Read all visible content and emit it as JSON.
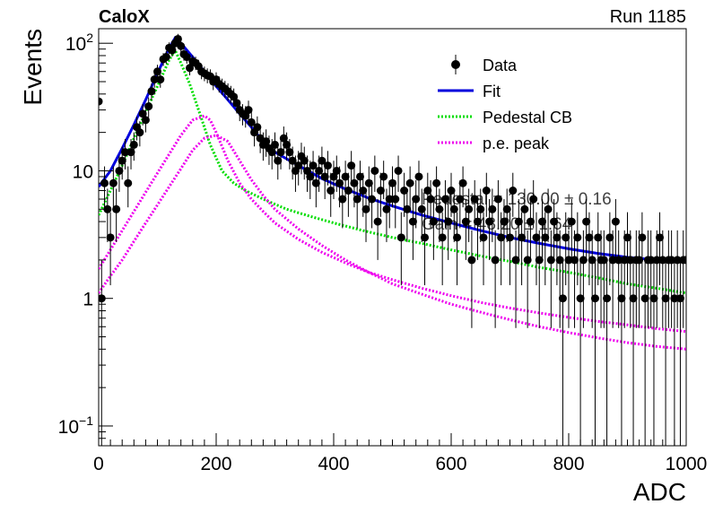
{
  "chart_data": {
    "type": "scatter",
    "experiment_label": "CaloX",
    "run_label": "Run 1185",
    "xlabel": "ADC",
    "ylabel": "Events",
    "xlim": [
      0,
      1000
    ],
    "ylim": [
      0.07,
      130
    ],
    "yscale": "log",
    "x_ticks": [
      0,
      200,
      400,
      600,
      800,
      1000
    ],
    "y_ticks": [
      {
        "value": 0.1,
        "base": "10",
        "exp": "−1"
      },
      {
        "value": 1,
        "text": "1"
      },
      {
        "value": 10,
        "text": "10"
      },
      {
        "value": 100,
        "base": "10",
        "exp": "2"
      }
    ],
    "legend": {
      "placement": "top-right",
      "entries": [
        {
          "label": "Data",
          "kind": "marker",
          "color": "#000000"
        },
        {
          "label": "Fit",
          "kind": "line",
          "color": "#0000dd"
        },
        {
          "label": "Pedestal CB",
          "kind": "dotted",
          "color": "#00dd00"
        },
        {
          "label": "p.e. peak",
          "kind": "dotted",
          "color": "#ee00ee"
        }
      ]
    },
    "fit_text": [
      "Pedestal = 130.00 ± 0.16",
      "Gain = 48.20 ± 1.64"
    ],
    "colors": {
      "data": "#000000",
      "fit": "#0000dd",
      "pedestal": "#00dd00",
      "pe_peak": "#ee00ee"
    },
    "series": [
      {
        "name": "Data",
        "x": [
          0,
          5,
          10,
          15,
          20,
          25,
          30,
          35,
          40,
          45,
          50,
          55,
          60,
          65,
          70,
          75,
          80,
          85,
          90,
          95,
          100,
          105,
          110,
          115,
          120,
          125,
          130,
          135,
          140,
          145,
          150,
          155,
          160,
          165,
          170,
          175,
          180,
          185,
          190,
          195,
          200,
          205,
          210,
          215,
          220,
          225,
          230,
          235,
          240,
          245,
          250,
          255,
          260,
          265,
          270,
          275,
          280,
          285,
          290,
          295,
          300,
          305,
          310,
          315,
          320,
          325,
          330,
          335,
          340,
          345,
          350,
          355,
          360,
          365,
          370,
          375,
          380,
          385,
          390,
          395,
          400,
          405,
          410,
          415,
          420,
          425,
          430,
          435,
          440,
          445,
          450,
          455,
          460,
          465,
          470,
          475,
          480,
          485,
          490,
          495,
          500,
          505,
          510,
          515,
          520,
          525,
          530,
          535,
          540,
          545,
          550,
          555,
          560,
          565,
          570,
          575,
          580,
          585,
          590,
          595,
          600,
          605,
          610,
          615,
          620,
          625,
          630,
          635,
          640,
          645,
          650,
          655,
          660,
          665,
          670,
          675,
          680,
          685,
          690,
          695,
          700,
          705,
          710,
          715,
          720,
          725,
          730,
          735,
          740,
          745,
          750,
          755,
          760,
          765,
          770,
          775,
          780,
          785,
          790,
          795,
          800,
          805,
          810,
          815,
          820,
          825,
          830,
          835,
          840,
          845,
          850,
          855,
          860,
          865,
          870,
          875,
          880,
          885,
          890,
          895,
          900,
          905,
          910,
          915,
          920,
          925,
          930,
          935,
          940,
          945,
          950,
          955,
          960,
          965,
          970,
          975,
          980,
          985,
          990,
          995,
          1000
        ],
        "y": [
          35,
          1,
          8,
          5,
          3,
          8,
          5,
          10,
          12,
          14,
          8,
          14,
          16,
          22,
          20,
          28,
          25,
          32,
          42,
          52,
          60,
          52,
          75,
          78,
          92,
          88,
          100,
          108,
          95,
          82,
          78,
          64,
          72,
          70,
          66,
          60,
          58,
          56,
          55,
          50,
          52,
          48,
          46,
          44,
          42,
          40,
          38,
          34,
          30,
          28,
          27,
          30,
          24,
          20,
          22,
          18,
          16,
          17,
          15,
          14,
          16,
          12,
          14,
          18,
          16,
          14,
          12,
          10,
          11,
          13,
          12,
          10,
          9,
          11,
          8,
          10,
          12,
          9,
          11,
          7,
          9,
          10,
          8,
          6,
          9,
          7,
          11,
          8,
          6,
          9,
          7,
          5,
          8,
          6,
          10,
          4,
          7,
          9,
          5,
          6,
          8,
          6,
          10,
          3,
          7,
          5,
          8,
          4,
          6,
          9,
          5,
          3,
          7,
          6,
          4,
          8,
          5,
          3,
          6,
          4,
          7,
          5,
          3,
          6,
          8,
          4,
          5,
          2,
          6,
          4,
          5,
          3,
          7,
          4,
          5,
          2,
          6,
          3,
          4,
          5,
          3,
          7,
          2,
          4,
          3,
          5,
          2,
          4,
          6,
          3,
          2,
          4,
          3,
          5,
          2,
          4,
          3,
          2,
          1,
          3,
          2,
          4,
          2,
          3,
          1,
          2,
          4,
          3,
          2,
          1,
          3,
          2,
          2,
          1,
          3,
          2,
          4,
          2,
          1,
          2,
          3,
          2,
          1,
          2,
          2,
          3,
          1,
          2,
          2,
          1,
          2,
          3,
          2,
          1,
          2,
          2,
          1,
          2,
          1,
          2,
          2
        ]
      },
      {
        "name": "Fit",
        "x": [
          0,
          20,
          40,
          60,
          80,
          100,
          120,
          130,
          140,
          160,
          180,
          200,
          220,
          240,
          260,
          280,
          300,
          340,
          380,
          420,
          460,
          500,
          550,
          600,
          650,
          700,
          750,
          800,
          850,
          900,
          950,
          1000
        ],
        "y": [
          7.5,
          10,
          15,
          23,
          36,
          58,
          92,
          110,
          100,
          78,
          60,
          46,
          36,
          28,
          22,
          17,
          14,
          11,
          8.7,
          7.2,
          6.1,
          5.3,
          4.5,
          3.9,
          3.4,
          3.0,
          2.7,
          2.45,
          2.25,
          2.1,
          2.0,
          1.95
        ]
      },
      {
        "name": "Pedestal CB",
        "x": [
          0,
          20,
          40,
          60,
          80,
          100,
          120,
          130,
          140,
          155,
          170,
          190,
          210,
          230,
          250,
          280,
          320,
          360,
          400,
          450,
          500,
          550,
          600,
          650,
          700,
          750,
          800,
          850,
          900,
          950,
          1000
        ],
        "y": [
          4.5,
          7,
          11,
          18,
          29,
          46,
          74,
          88,
          70,
          48,
          30,
          16,
          10,
          8,
          7,
          6,
          5,
          4.4,
          3.9,
          3.4,
          3.0,
          2.7,
          2.4,
          2.15,
          1.95,
          1.75,
          1.6,
          1.45,
          1.3,
          1.2,
          1.1
        ]
      },
      {
        "name": "p.e. peak",
        "x": [
          0,
          20,
          40,
          60,
          80,
          100,
          120,
          140,
          160,
          180,
          200,
          220,
          240,
          260,
          280,
          300,
          340,
          380,
          420,
          460,
          500,
          550,
          600,
          650,
          700,
          750,
          800,
          850,
          900,
          950,
          1000
        ],
        "y": [
          1.1,
          1.5,
          2.0,
          2.8,
          3.9,
          5.4,
          7.5,
          10.4,
          14.5,
          18,
          19,
          17,
          12,
          8.5,
          6.4,
          5.0,
          3.5,
          2.6,
          2.0,
          1.6,
          1.3,
          1.08,
          0.9,
          0.78,
          0.68,
          0.6,
          0.54,
          0.49,
          0.45,
          0.42,
          0.4
        ]
      },
      {
        "name": "p.e. peak",
        "x": [
          0,
          20,
          40,
          60,
          80,
          100,
          120,
          140,
          160,
          180,
          190,
          200,
          220,
          240,
          260,
          280,
          300,
          340,
          380,
          420,
          460,
          500,
          550,
          600,
          650,
          700,
          750,
          800,
          850,
          900,
          950,
          1000
        ],
        "y": [
          1.7,
          2.4,
          3.4,
          4.8,
          6.8,
          9.6,
          13.5,
          19,
          25,
          27,
          25,
          20,
          12,
          8,
          6,
          4.8,
          3.9,
          2.9,
          2.3,
          1.9,
          1.6,
          1.4,
          1.2,
          1.05,
          0.93,
          0.84,
          0.77,
          0.71,
          0.66,
          0.62,
          0.58,
          0.55
        ]
      }
    ]
  }
}
